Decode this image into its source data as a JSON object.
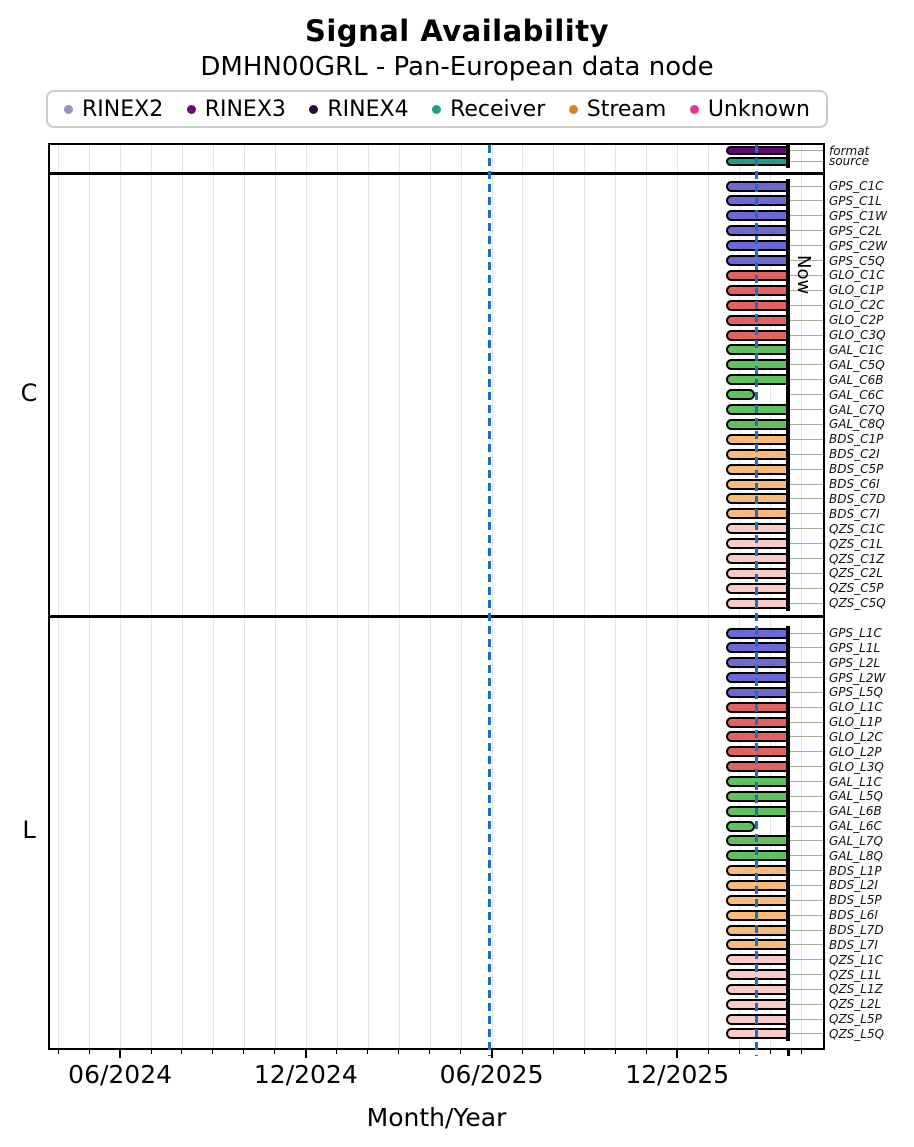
{
  "title": "Signal Availability",
  "subtitle": "DMHN00GRL - Pan-European data node",
  "legend": [
    {
      "label": "RINEX2",
      "color": "#9b8fca"
    },
    {
      "label": "RINEX3",
      "color": "#6a0e76"
    },
    {
      "label": "RINEX4",
      "color": "#2d0a35"
    },
    {
      "label": "Receiver",
      "color": "#1fa187"
    },
    {
      "label": "Stream",
      "color": "#e87b1c"
    },
    {
      "label": "Unknown",
      "color": "#ee3390"
    }
  ],
  "colors": {
    "GPS": "#6c69d6",
    "GLO": "#e0635f",
    "GAL": "#5fc05c",
    "BDS": "#f9b977",
    "QZS": "#f8caca",
    "format": "#60096b",
    "source": "#17a186",
    "dashed_line": "#1a6fc4",
    "grid": "#e3e3e3",
    "connector": "#a5ae97"
  },
  "now_label": "Now",
  "chart_data": {
    "type": "bar",
    "variant": "horizontal-availability-timeline",
    "title": "Signal Availability",
    "subtitle": "DMHN00GRL - Pan-European data node",
    "xlabel": "Month/Year",
    "x_range_decimal_years": [
      2024.228,
      2026.309
    ],
    "x_ticks": [
      {
        "label": "06/2024",
        "x": 2024.4167
      },
      {
        "label": "12/2024",
        "x": 2024.9167
      },
      {
        "label": "06/2025",
        "x": 2025.4167
      },
      {
        "label": "12/2025",
        "x": 2025.9167
      }
    ],
    "month_grid": {
      "start": 2024.25,
      "count": 25,
      "step_years": 0.0833333
    },
    "dashed_lines": [
      2025.41,
      2026.13
    ],
    "now": {
      "x": 2026.215,
      "label": "Now"
    },
    "bar_start": 2026.048,
    "bar_end_full": 2026.215,
    "bar_end_short": 2026.125,
    "sections": [
      {
        "label": "",
        "rows": [
          {
            "name": "format",
            "group": "format",
            "span": "full"
          },
          {
            "name": "source",
            "group": "source",
            "span": "full"
          }
        ]
      },
      {
        "label": "C",
        "rows": [
          {
            "name": "GPS_C1C",
            "group": "GPS",
            "span": "full"
          },
          {
            "name": "GPS_C1L",
            "group": "GPS",
            "span": "full"
          },
          {
            "name": "GPS_C1W",
            "group": "GPS",
            "span": "full"
          },
          {
            "name": "GPS_C2L",
            "group": "GPS",
            "span": "full"
          },
          {
            "name": "GPS_C2W",
            "group": "GPS",
            "span": "full"
          },
          {
            "name": "GPS_C5Q",
            "group": "GPS",
            "span": "full"
          },
          {
            "name": "GLO_C1C",
            "group": "GLO",
            "span": "full"
          },
          {
            "name": "GLO_C1P",
            "group": "GLO",
            "span": "full"
          },
          {
            "name": "GLO_C2C",
            "group": "GLO",
            "span": "full"
          },
          {
            "name": "GLO_C2P",
            "group": "GLO",
            "span": "full"
          },
          {
            "name": "GLO_C3Q",
            "group": "GLO",
            "span": "full"
          },
          {
            "name": "GAL_C1C",
            "group": "GAL",
            "span": "full"
          },
          {
            "name": "GAL_C5Q",
            "group": "GAL",
            "span": "full"
          },
          {
            "name": "GAL_C6B",
            "group": "GAL",
            "span": "full"
          },
          {
            "name": "GAL_C6C",
            "group": "GAL",
            "span": "short"
          },
          {
            "name": "GAL_C7Q",
            "group": "GAL",
            "span": "full"
          },
          {
            "name": "GAL_C8Q",
            "group": "GAL",
            "span": "full"
          },
          {
            "name": "BDS_C1P",
            "group": "BDS",
            "span": "full"
          },
          {
            "name": "BDS_C2I",
            "group": "BDS",
            "span": "full"
          },
          {
            "name": "BDS_C5P",
            "group": "BDS",
            "span": "full"
          },
          {
            "name": "BDS_C6I",
            "group": "BDS",
            "span": "full"
          },
          {
            "name": "BDS_C7D",
            "group": "BDS",
            "span": "full"
          },
          {
            "name": "BDS_C7I",
            "group": "BDS",
            "span": "full"
          },
          {
            "name": "QZS_C1C",
            "group": "QZS",
            "span": "full"
          },
          {
            "name": "QZS_C1L",
            "group": "QZS",
            "span": "full"
          },
          {
            "name": "QZS_C1Z",
            "group": "QZS",
            "span": "full"
          },
          {
            "name": "QZS_C2L",
            "group": "QZS",
            "span": "full"
          },
          {
            "name": "QZS_C5P",
            "group": "QZS",
            "span": "full"
          },
          {
            "name": "QZS_C5Q",
            "group": "QZS",
            "span": "full"
          }
        ]
      },
      {
        "label": "L",
        "rows": [
          {
            "name": "GPS_L1C",
            "group": "GPS",
            "span": "full"
          },
          {
            "name": "GPS_L1L",
            "group": "GPS",
            "span": "full"
          },
          {
            "name": "GPS_L2L",
            "group": "GPS",
            "span": "full"
          },
          {
            "name": "GPS_L2W",
            "group": "GPS",
            "span": "full"
          },
          {
            "name": "GPS_L5Q",
            "group": "GPS",
            "span": "full"
          },
          {
            "name": "GLO_L1C",
            "group": "GLO",
            "span": "full"
          },
          {
            "name": "GLO_L1P",
            "group": "GLO",
            "span": "full"
          },
          {
            "name": "GLO_L2C",
            "group": "GLO",
            "span": "full"
          },
          {
            "name": "GLO_L2P",
            "group": "GLO",
            "span": "full"
          },
          {
            "name": "GLO_L3Q",
            "group": "GLO",
            "span": "full"
          },
          {
            "name": "GAL_L1C",
            "group": "GAL",
            "span": "full"
          },
          {
            "name": "GAL_L5Q",
            "group": "GAL",
            "span": "full"
          },
          {
            "name": "GAL_L6B",
            "group": "GAL",
            "span": "full"
          },
          {
            "name": "GAL_L6C",
            "group": "GAL",
            "span": "short"
          },
          {
            "name": "GAL_L7Q",
            "group": "GAL",
            "span": "full"
          },
          {
            "name": "GAL_L8Q",
            "group": "GAL",
            "span": "full"
          },
          {
            "name": "BDS_L1P",
            "group": "BDS",
            "span": "full"
          },
          {
            "name": "BDS_L2I",
            "group": "BDS",
            "span": "full"
          },
          {
            "name": "BDS_L5P",
            "group": "BDS",
            "span": "full"
          },
          {
            "name": "BDS_L6I",
            "group": "BDS",
            "span": "full"
          },
          {
            "name": "BDS_L7D",
            "group": "BDS",
            "span": "full"
          },
          {
            "name": "BDS_L7I",
            "group": "BDS",
            "span": "full"
          },
          {
            "name": "QZS_L1C",
            "group": "QZS",
            "span": "full"
          },
          {
            "name": "QZS_L1L",
            "group": "QZS",
            "span": "full"
          },
          {
            "name": "QZS_L1Z",
            "group": "QZS",
            "span": "full"
          },
          {
            "name": "QZS_L2L",
            "group": "QZS",
            "span": "full"
          },
          {
            "name": "QZS_L5P",
            "group": "QZS",
            "span": "full"
          },
          {
            "name": "QZS_L5Q",
            "group": "QZS",
            "span": "full"
          }
        ]
      }
    ]
  }
}
